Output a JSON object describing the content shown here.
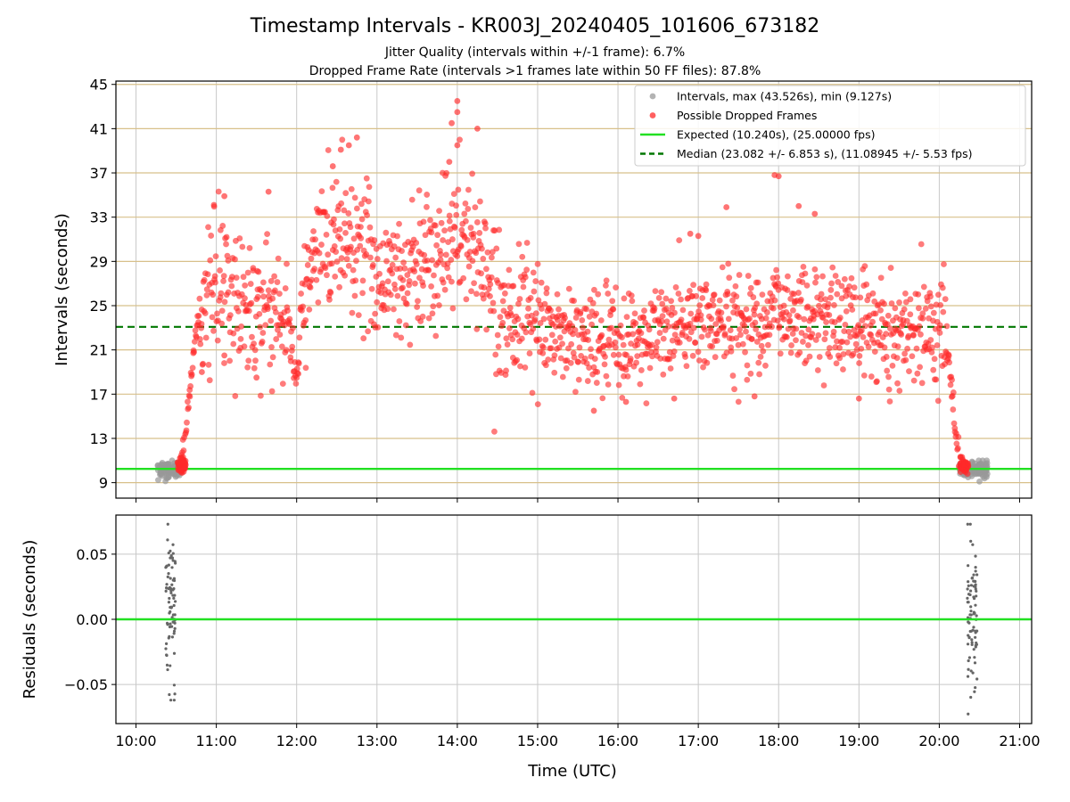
{
  "chart_data": [
    {
      "type": "scatter",
      "panel": "top",
      "title": "Timestamp Intervals - KR003J_20240405_101606_673182",
      "subtitle_lines": [
        "Jitter Quality (intervals within +/-1 frame): 6.7%",
        "Dropped Frame Rate (intervals >1 frames late within 50 FF files): 87.8%"
      ],
      "ylabel": "Intervals (seconds)",
      "xlim_hours": [
        9.75,
        21.15
      ],
      "ylim": [
        7.6,
        45.3
      ],
      "yticks": [
        9,
        13,
        17,
        21,
        25,
        29,
        33,
        37,
        41,
        45
      ],
      "grid": true,
      "legend_position": "top-right",
      "colors": {
        "intervals": "#999999",
        "dropped": "#ff2a2a",
        "expected": "#22e022",
        "median": "#007700",
        "hgrid": "#d8c08a",
        "vgrid": "#c8c8c8"
      },
      "series": [
        {
          "name": "Intervals, max (43.526s), min (9.127s)",
          "kind": "scatter",
          "clusters": [
            {
              "x_range": [
                10.27,
                10.58
              ],
              "y_range": [
                9.1,
                11.0
              ],
              "count": 110
            },
            {
              "x_range": [
                20.25,
                20.6
              ],
              "y_range": [
                9.1,
                11.0
              ],
              "count": 120
            }
          ]
        },
        {
          "name": "Possible Dropped Frames",
          "kind": "scatter",
          "description": "dense scatter of late intervals between ~10:33 and ~20:18"
        },
        {
          "name": "Expected (10.240s), (25.00000 fps)",
          "kind": "hline",
          "y": 10.24
        },
        {
          "name": "Median (23.082 +/- 6.853 s), (11.08945 +/- 5.53 fps)",
          "kind": "hline-dashed",
          "y": 23.082
        }
      ],
      "dropped_trend": [
        [
          10.55,
          10.8
        ],
        [
          10.6,
          12.5
        ],
        [
          10.65,
          16.0
        ],
        [
          10.7,
          20.0
        ],
        [
          10.75,
          23.0
        ],
        [
          10.85,
          25.0
        ],
        [
          11.0,
          26.5
        ],
        [
          11.2,
          25.5
        ],
        [
          11.5,
          25.0
        ],
        [
          11.8,
          24.5
        ],
        [
          11.95,
          21.5
        ],
        [
          12.0,
          17.5
        ],
        [
          12.05,
          24.0
        ],
        [
          12.2,
          29.0
        ],
        [
          12.5,
          32.0
        ],
        [
          12.8,
          30.5
        ],
        [
          13.0,
          28.0
        ],
        [
          13.3,
          27.5
        ],
        [
          13.6,
          29.5
        ],
        [
          14.0,
          31.0
        ],
        [
          14.3,
          30.0
        ],
        [
          14.5,
          25.0
        ],
        [
          15.0,
          23.0
        ],
        [
          15.5,
          22.0
        ],
        [
          16.0,
          21.5
        ],
        [
          16.5,
          22.5
        ],
        [
          17.0,
          23.5
        ],
        [
          17.5,
          23.5
        ],
        [
          18.0,
          24.5
        ],
        [
          18.5,
          24.0
        ],
        [
          19.0,
          23.5
        ],
        [
          19.5,
          22.5
        ],
        [
          19.9,
          23.5
        ],
        [
          20.05,
          24.0
        ],
        [
          20.12,
          21.0
        ],
        [
          20.17,
          16.0
        ],
        [
          20.2,
          13.0
        ],
        [
          20.25,
          11.0
        ]
      ],
      "dropped_outliers": [
        [
          14.0,
          43.5
        ],
        [
          14.0,
          42.5
        ],
        [
          13.93,
          41.5
        ],
        [
          14.25,
          41.0
        ],
        [
          14.0,
          39.5
        ],
        [
          12.75,
          40.2
        ],
        [
          12.65,
          39.5
        ],
        [
          12.55,
          39.1
        ],
        [
          12.45,
          37.6
        ],
        [
          13.9,
          38.0
        ],
        [
          17.95,
          36.8
        ],
        [
          18.0,
          36.7
        ],
        [
          11.65,
          35.3
        ],
        [
          10.97,
          34.1
        ],
        [
          11.1,
          34.9
        ],
        [
          17.35,
          33.9
        ],
        [
          18.25,
          34.0
        ],
        [
          18.45,
          33.3
        ],
        [
          16.9,
          31.5
        ],
        [
          17.0,
          31.3
        ],
        [
          15.7,
          15.5
        ],
        [
          16.1,
          16.3
        ],
        [
          16.7,
          16.6
        ],
        [
          17.7,
          16.8
        ],
        [
          19.0,
          16.6
        ],
        [
          11.5,
          18.5
        ],
        [
          10.82,
          19.0
        ],
        [
          11.1,
          20.5
        ]
      ]
    },
    {
      "type": "scatter",
      "panel": "bottom",
      "xlabel": "Time (UTC)",
      "ylabel": "Residuals (seconds)",
      "ylim": [
        -0.08,
        0.08
      ],
      "yticks": [
        -0.05,
        0.0,
        0.05
      ],
      "ytick_labels": [
        "−0.05",
        "0.00",
        "0.05"
      ],
      "xticks": [
        10,
        11,
        12,
        13,
        14,
        15,
        16,
        17,
        18,
        19,
        20,
        21
      ],
      "xtick_labels": [
        "10:00",
        "11:00",
        "12:00",
        "13:00",
        "14:00",
        "15:00",
        "16:00",
        "17:00",
        "18:00",
        "19:00",
        "20:00",
        "21:00"
      ],
      "grid": true,
      "colors": {
        "points": "#666666",
        "zero": "#22e022"
      },
      "series": [
        {
          "kind": "scatter",
          "clusters": [
            {
              "x_range": [
                10.27,
                10.58
              ],
              "y_range": [
                -0.062,
                0.073
              ],
              "count": 80
            },
            {
              "x_range": [
                20.25,
                20.6
              ],
              "y_range": [
                -0.075,
                0.073
              ],
              "count": 80
            }
          ]
        },
        {
          "kind": "hline",
          "y": 0.0
        }
      ]
    }
  ]
}
